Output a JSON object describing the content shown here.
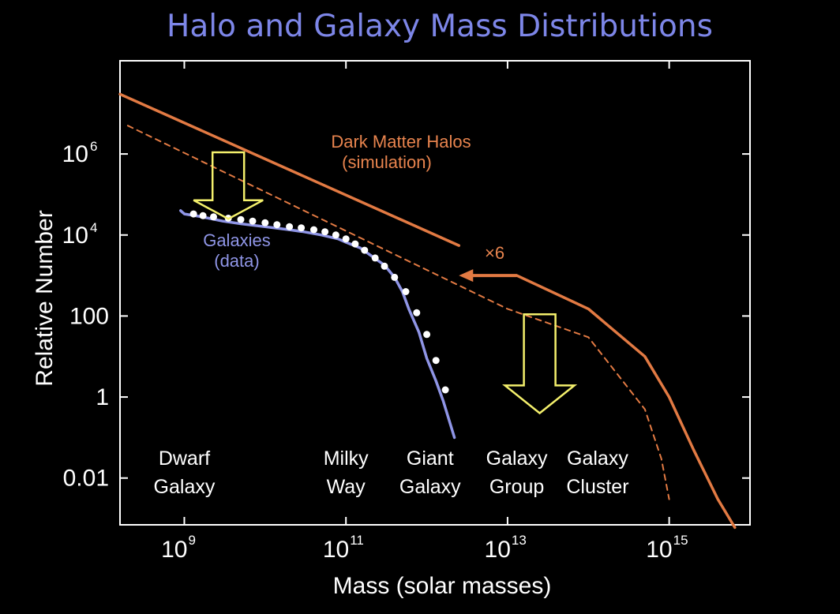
{
  "chart_data": {
    "type": "line",
    "title": "Halo and Galaxy Mass Distributions",
    "xlabel": "Mass (solar masses)",
    "ylabel": "Relative Number",
    "x_scale": "log",
    "y_scale": "log",
    "xlim": [
      160000000.0,
      1e+16
    ],
    "ylim": [
      0.0007,
      200000000.0
    ],
    "x_ticks": [
      {
        "base": "10",
        "exp": "9",
        "value": 1000000000.0
      },
      {
        "base": "10",
        "exp": "11",
        "value": 100000000000.0
      },
      {
        "base": "10",
        "exp": "13",
        "value": 10000000000000.0
      },
      {
        "base": "10",
        "exp": "15",
        "value": 1000000000000000.0
      }
    ],
    "y_ticks": [
      {
        "label": "10",
        "exp": "6",
        "value": 1000000.0
      },
      {
        "label": "10",
        "exp": "4",
        "value": 10000.0
      },
      {
        "label": "100",
        "exp": "",
        "value": 100
      },
      {
        "label": "1",
        "exp": "",
        "value": 1
      },
      {
        "label": "0.01",
        "exp": "",
        "value": 0.01
      }
    ],
    "series": [
      {
        "name": "Dark Matter Halos (simulation)",
        "style": "solid",
        "color": "#e27a43",
        "x": [
          160000000.0,
          2500000000000.0,
          null,
          13000000000000.0,
          100000000000000.0,
          500000000000000.0,
          1000000000000000.0,
          2000000000000000.0,
          4000000000000000.0,
          6500000000000000.0
        ],
        "y": [
          30000000.0,
          5500,
          null,
          1000,
          150,
          10,
          1,
          0.05,
          0.003,
          0.0006
        ]
      },
      {
        "name": "Dark Matter Halos x6 shifted",
        "style": "dashed",
        "color": "#e27a43",
        "x": [
          200000000.0,
          10000000000000.0,
          100000000000000.0,
          500000000000000.0,
          800000000000000.0,
          1000000000000000.0
        ],
        "y": [
          5000000.0,
          150,
          30,
          0.5,
          0.03,
          0.003
        ]
      },
      {
        "name": "Galaxies (data)",
        "style": "solid",
        "color": "#8f95e6",
        "markers": true,
        "x": [
          900000000.0,
          1000000000.0,
          1500000000.0,
          2000000000.0,
          3000000000.0,
          5000000000.0,
          10000000000.0,
          15000000000.0,
          20000000000.0,
          30000000000.0,
          50000000000.0,
          80000000000.0,
          100000000000.0,
          150000000000.0,
          200000000000.0,
          300000000000.0,
          400000000000.0,
          500000000000.0,
          600000000000.0,
          800000000000.0,
          1000000000000.0,
          1300000000000.0,
          1600000000000.0,
          2200000000000.0
        ],
        "y": [
          40000,
          33000,
          29000,
          26000,
          22000,
          19000,
          16000,
          14500,
          13500,
          12000,
          10000,
          8000,
          6600,
          4800,
          3200,
          1800,
          900,
          400,
          150,
          40,
          9,
          2.5,
          0.8,
          0.1
        ],
        "marker_x": [
          1300000000.0,
          1700000000.0,
          2300000000.0,
          3500000000.0,
          5000000000.0,
          7000000000.0,
          10000000000.0,
          14000000000.0,
          20000000000.0,
          28000000000.0,
          40000000000.0,
          55000000000.0,
          75000000000.0,
          100000000000.0,
          130000000000.0,
          170000000000.0,
          230000000000.0,
          300000000000.0,
          400000000000.0,
          550000000000.0,
          750000000000.0,
          1000000000000.0,
          1300000000000.0,
          1700000000000.0
        ],
        "marker_y": [
          33000,
          30000,
          28000,
          26000,
          24000,
          22000,
          20000,
          18000,
          16000,
          15000,
          13500,
          12000,
          10000,
          8000,
          6000,
          4200,
          2700,
          1700,
          900,
          400,
          120,
          35,
          8,
          1.5
        ]
      }
    ],
    "annotations": {
      "dm_line1": "Dark Matter Halos",
      "dm_line2": "(simulation)",
      "gal_line1": "Galaxies",
      "gal_line2": "(data)",
      "x6": "×6"
    },
    "categories": [
      {
        "line1": "Dwarf",
        "line2": "Galaxy",
        "x": 1000000000.0
      },
      {
        "line1": "Milky",
        "line2": "Way",
        "x": 100000000000.0
      },
      {
        "line1": "Giant",
        "line2": "Galaxy",
        "x": 1100000000000.0
      },
      {
        "line1": "Galaxy",
        "line2": "Group",
        "x": 13000000000000.0
      },
      {
        "line1": "Galaxy",
        "line2": "Cluster",
        "x": 130000000000000.0
      }
    ],
    "arrows": [
      {
        "type": "hollow-down",
        "color": "#f4f06c",
        "from_x": 3500000000.0,
        "from_y": 1100000.0,
        "to_y": 25000
      },
      {
        "type": "hollow-down",
        "color": "#f4f06c",
        "from_x": 25000000000000.0,
        "from_y": 110,
        "to_y": 0.4
      },
      {
        "type": "solid-left",
        "color": "#e27a43",
        "from_x": 13000000000000.0,
        "to_x": 2500000000000.0,
        "y": 1000
      }
    ],
    "colors": {
      "background": "#000000",
      "frame": "#ffffff",
      "halo": "#e27a43",
      "galaxy": "#8f95e6",
      "arrow": "#f4f06c",
      "title": "#7d86e8"
    }
  }
}
